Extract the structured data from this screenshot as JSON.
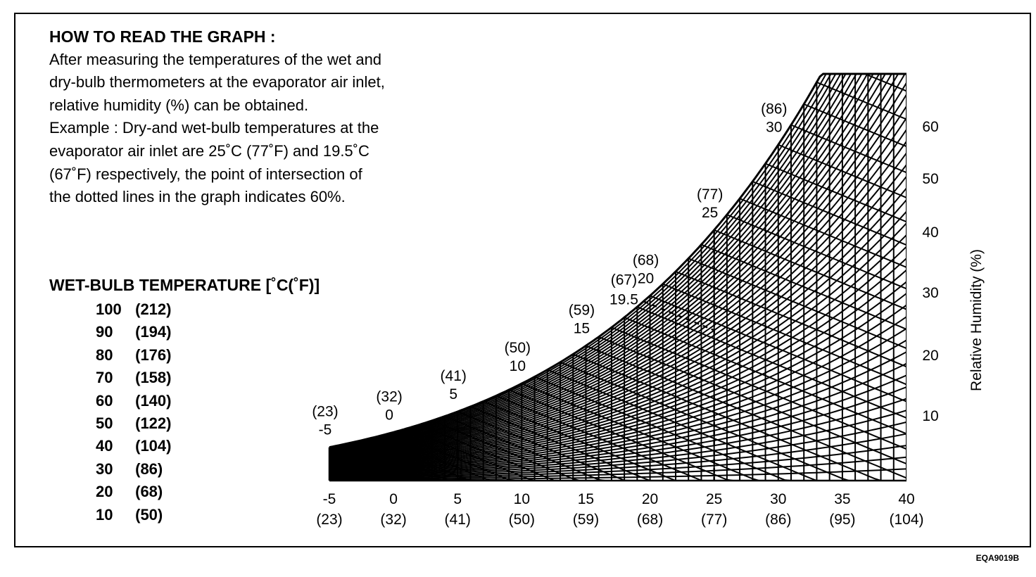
{
  "howto": {
    "title": "HOW TO READ THE GRAPH :",
    "lines": [
      "After measuring the temperatures of the wet and",
      "dry-bulb thermometers at the evaporator air inlet,",
      "relative humidity (%) can be obtained.",
      "Example : Dry-and wet-bulb temperatures at the",
      "evaporator air inlet are 25˚C (77˚F) and 19.5˚C",
      "(67˚F) respectively, the point of intersection of",
      "the dotted lines in the graph indicates 60%."
    ]
  },
  "wet_bulb_title": "WET-BULB TEMPERATURE [˚C(˚F)]",
  "figure_code": "EQA9019B",
  "chart_data": {
    "type": "line",
    "title": "",
    "xlabel": "",
    "ylabel": "Relative Humidity (%)",
    "xlim": [
      -5,
      40
    ],
    "ylim": [
      0,
      67
    ],
    "grid": true,
    "x_ticks": [
      {
        "c": "-5",
        "f": "(23)"
      },
      {
        "c": "0",
        "f": "(32)"
      },
      {
        "c": "5",
        "f": "(41)"
      },
      {
        "c": "10",
        "f": "(50)"
      },
      {
        "c": "15",
        "f": "(59)"
      },
      {
        "c": "20",
        "f": "(68)"
      },
      {
        "c": "25",
        "f": "(77)"
      },
      {
        "c": "30",
        "f": "(86)"
      },
      {
        "c": "35",
        "f": "(95)"
      },
      {
        "c": "40",
        "f": "(104)"
      }
    ],
    "y_ticks": [
      "10",
      "20",
      "30",
      "40",
      "50",
      "60"
    ],
    "saturation_labels": [
      {
        "c": "-5",
        "f": "(23)"
      },
      {
        "c": "0",
        "f": "(32)"
      },
      {
        "c": "5",
        "f": "(41)"
      },
      {
        "c": "10",
        "f": "(50)"
      },
      {
        "c": "15",
        "f": "(59)"
      },
      {
        "c": "20",
        "f": "(68)"
      },
      {
        "c": "25",
        "f": "(77)"
      },
      {
        "c": "30",
        "f": "(86)"
      }
    ],
    "example_label": {
      "c": "19.5",
      "f": "(67)"
    },
    "example": {
      "dry_bulb": 25,
      "wet_bulb": 19.5,
      "relative_humidity": 60
    },
    "wet_bulb_legend": [
      {
        "c": "100",
        "f": "(212)"
      },
      {
        "c": "90",
        "f": "(194)"
      },
      {
        "c": "80",
        "f": "(176)"
      },
      {
        "c": "70",
        "f": "(158)"
      },
      {
        "c": "60",
        "f": "(140)"
      },
      {
        "c": "50",
        "f": "(122)"
      },
      {
        "c": "40",
        "f": "(104)"
      },
      {
        "c": "30",
        "f": "(86)"
      },
      {
        "c": "20",
        "f": "(68)"
      },
      {
        "c": "10",
        "f": "(50)"
      }
    ]
  }
}
